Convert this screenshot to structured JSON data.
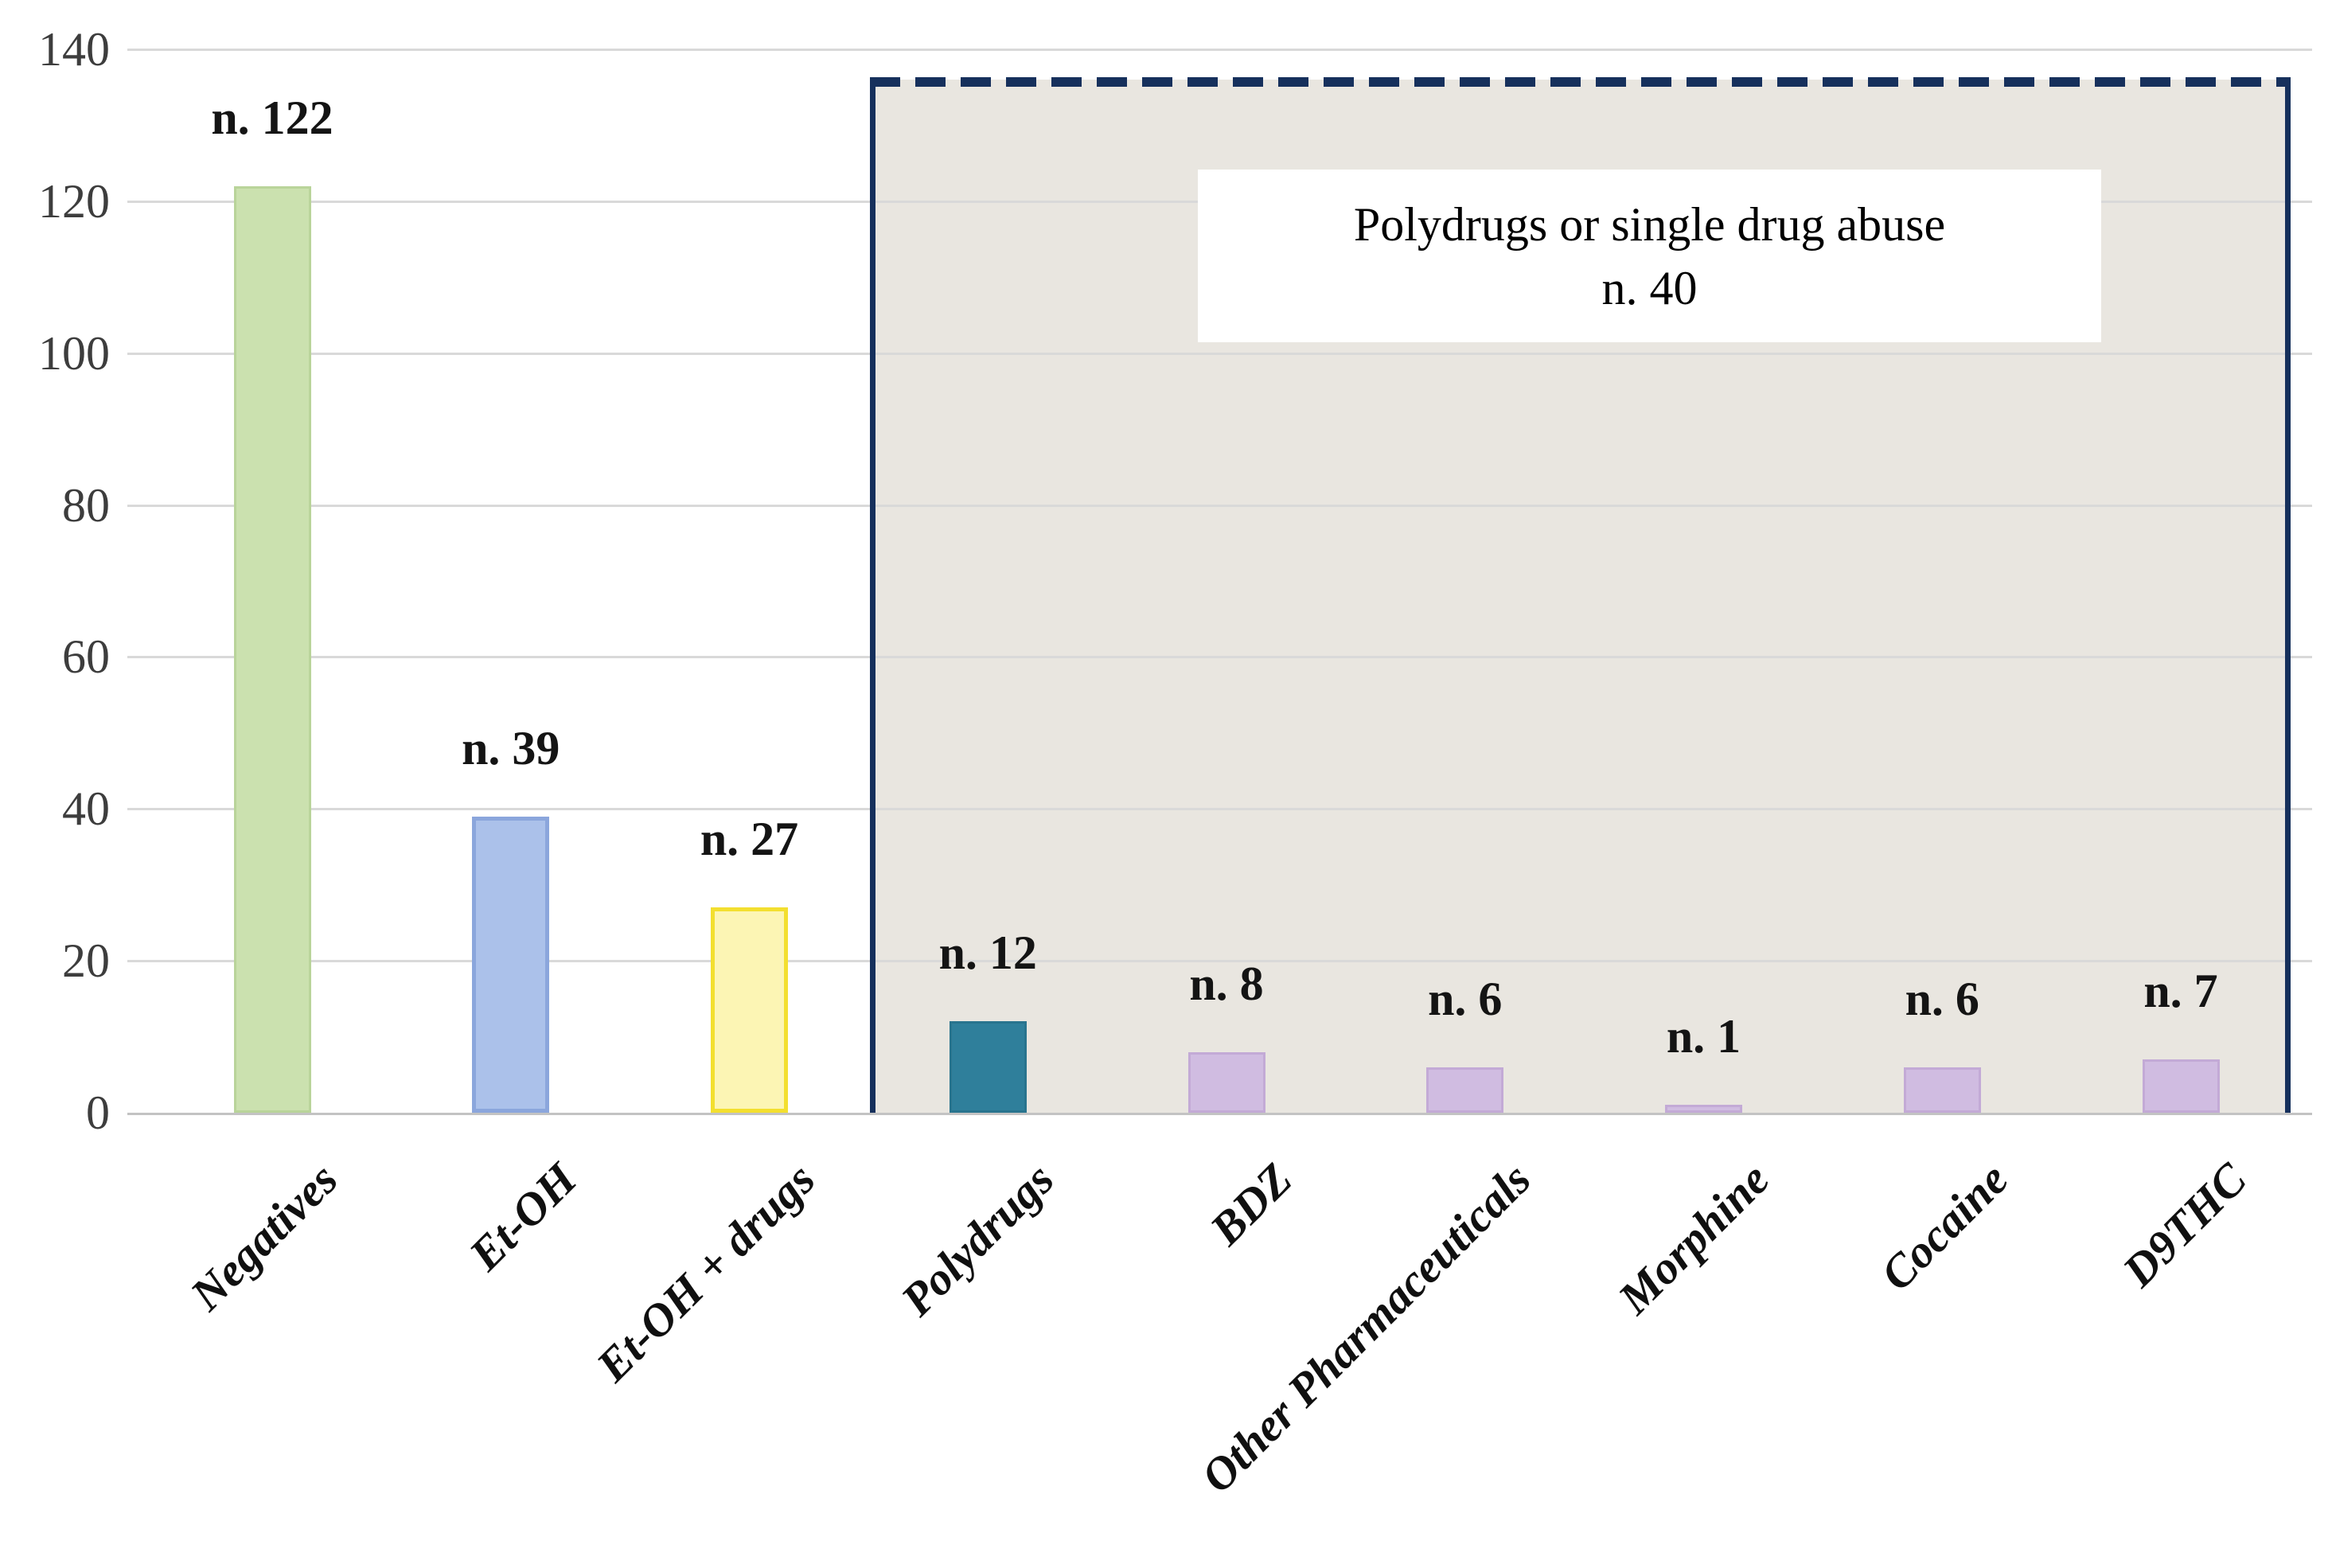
{
  "chart_data": {
    "type": "bar",
    "title": "",
    "xlabel": "",
    "ylabel": "",
    "categories": [
      "Negatives",
      "Et-OH",
      "Et-OH + drugs",
      "Polydrugs",
      "BDZ",
      "Other Pharmaceuticals",
      "Morphine",
      "Cocaine",
      "D9THC"
    ],
    "values": [
      122,
      39,
      27,
      12,
      8,
      6,
      1,
      6,
      7
    ],
    "data_labels": [
      "n. 122",
      "n. 39",
      "n. 27",
      "n. 12",
      "n. 8",
      "n. 6",
      "n. 1",
      "n. 6",
      "n. 7"
    ],
    "ylim": [
      0,
      140
    ],
    "yticks": [
      0,
      20,
      40,
      60,
      80,
      100,
      120,
      140
    ],
    "grid": "horizontal",
    "legend": "none",
    "bar_styles": [
      {
        "fill": "#cbe1af",
        "border": "#b9d49a"
      },
      {
        "fill": "#abc1ea",
        "border": "#8ba6dc"
      },
      {
        "fill": "#fcf5b4",
        "border": "#f3df2f"
      },
      {
        "fill": "#2f7f9b",
        "border": "#29748e"
      },
      {
        "fill": "#d0bce1",
        "border": "#c3aad6"
      },
      {
        "fill": "#d0bce1",
        "border": "#c3aad6"
      },
      {
        "fill": "#d0bce1",
        "border": "#c3aad6"
      },
      {
        "fill": "#d0bce1",
        "border": "#c3aad6"
      },
      {
        "fill": "#d0bce1",
        "border": "#c3aad6"
      }
    ],
    "highlight_region": {
      "label_line1": "Polydrugs or single drug abuse",
      "label_line2": "n. 40",
      "total": 40,
      "first_category": "Polydrugs",
      "last_category": "D9THC",
      "fill": "#e9e6e0",
      "border_color": "#16305c",
      "border_style": "dashed-top-solid-sides"
    },
    "axis_colors": {
      "gridline": "#d9d9d9",
      "axis_line": "#c3c3c3",
      "tick_text": "#3d3d3d",
      "label_text": "#101010"
    }
  }
}
